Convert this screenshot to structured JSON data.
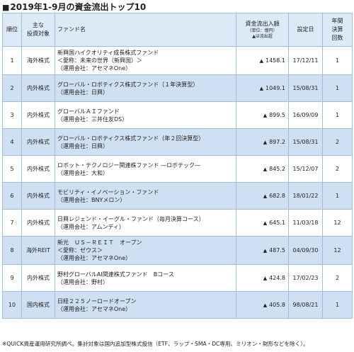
{
  "title": "2019年1-9月の資金流出トップ10",
  "title_marker": "■",
  "headers": {
    "rank": "順位",
    "asset": "主な\n投資対象",
    "fund": "ファンド名",
    "flow": "資金流出入額",
    "flow_unit": "（単位：億円）",
    "flow_note": "▲は流出超",
    "date": "設定日",
    "settle": "年間\n決算\n回数"
  },
  "rows": [
    {
      "rank": "1",
      "asset": "海外株式",
      "lines": [
        "新興国ハイクオリティ成長株式ファンド",
        "＜愛称：未来の世界（新興国）＞",
        "（運用会社：アセマネOne）"
      ],
      "flow": "1458.1",
      "date": "17/12/11",
      "settle": "1"
    },
    {
      "rank": "2",
      "asset": "内外株式",
      "lines": [
        "グローバル・ロボティクス株式ファンド（１年決算型）",
        "（運用会社：日興）"
      ],
      "flow": "1049.1",
      "date": "15/08/31",
      "settle": "1"
    },
    {
      "rank": "3",
      "asset": "内外株式",
      "lines": [
        "グローバルＡＩファンド",
        "（運用会社：三井住友DS）"
      ],
      "flow": "899.5",
      "date": "16/09/09",
      "settle": "1"
    },
    {
      "rank": "4",
      "asset": "内外株式",
      "lines": [
        "グローバル・ロボティクス株式ファンド（年２回決算型）",
        "（運用会社：日興）"
      ],
      "flow": "897.2",
      "date": "15/08/31",
      "settle": "2"
    },
    {
      "rank": "5",
      "asset": "内外株式",
      "lines": [
        "ロボット・テクノロジー関連株ファンド ―ロボテック―",
        "（運用会社：大和）"
      ],
      "flow": "845.2",
      "date": "15/12/07",
      "settle": "2"
    },
    {
      "rank": "6",
      "asset": "内外株式",
      "lines": [
        "モビリティ・イノベーション・ファンド",
        "（運用会社：BNYメロン）"
      ],
      "flow": "682.8",
      "date": "18/01/22",
      "settle": "1"
    },
    {
      "rank": "7",
      "asset": "内外株式",
      "lines": [
        "日興レジェンド・イーグル・ファンド（毎月決算コース）",
        "（運用会社：アムンディ）"
      ],
      "flow": "645.1",
      "date": "11/03/18",
      "settle": "12"
    },
    {
      "rank": "8",
      "asset": "海外REIT",
      "lines": [
        "新光　ＵＳ－ＲＥＩＴ　オープン",
        "＜愛称：ゼウス＞",
        "（運用会社：アセマネOne）"
      ],
      "flow": "487.5",
      "date": "04/09/30",
      "settle": "12"
    },
    {
      "rank": "9",
      "asset": "内外株式",
      "lines": [
        "野村グローバルAI関連株式ファンド　Bコース",
        "（運用会社：野村）"
      ],
      "flow": "424.8",
      "date": "17/02/23",
      "settle": "2"
    },
    {
      "rank": "10",
      "asset": "国内株式",
      "lines": [
        "日経２２５ノーロードオープン",
        "（運用会社：アセマネOne）"
      ],
      "flow": "405.8",
      "date": "98/08/21",
      "settle": "1"
    }
  ],
  "flow_prefix": "▲",
  "footnote": "※QUICK資産運用研究所調べ。集計対象は国内追加型株式投信（ETF、ラップ・SMA・DC専用、ミリオン・財形などを除く）。"
}
